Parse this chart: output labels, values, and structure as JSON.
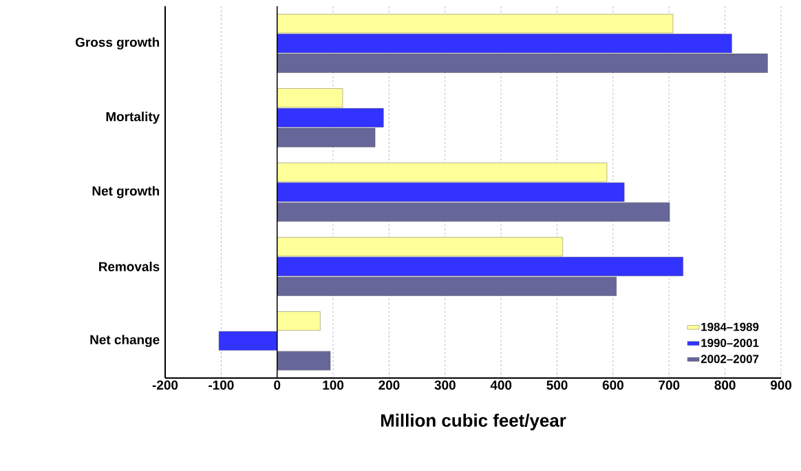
{
  "chart_data": {
    "type": "bar",
    "orientation": "horizontal",
    "xlabel": "Million cubic feet/year",
    "categories": [
      "Gross growth",
      "Mortality",
      "Net growth",
      "Removals",
      "Net change"
    ],
    "series": [
      {
        "name": "1984–1989",
        "color": "#ffff99",
        "values": [
          707,
          117,
          589,
          510,
          77
        ]
      },
      {
        "name": "1990–2001",
        "color": "#3333ff",
        "values": [
          812,
          190,
          620,
          725,
          -104
        ]
      },
      {
        "name": "2002–2007",
        "color": "#666699",
        "values": [
          876,
          175,
          701,
          606,
          95
        ]
      }
    ],
    "xlim": [
      -200,
      900
    ],
    "xticks": [
      -200,
      -100,
      0,
      100,
      200,
      300,
      400,
      500,
      600,
      700,
      800,
      900
    ],
    "grid": "x",
    "legend": "bottom right"
  }
}
